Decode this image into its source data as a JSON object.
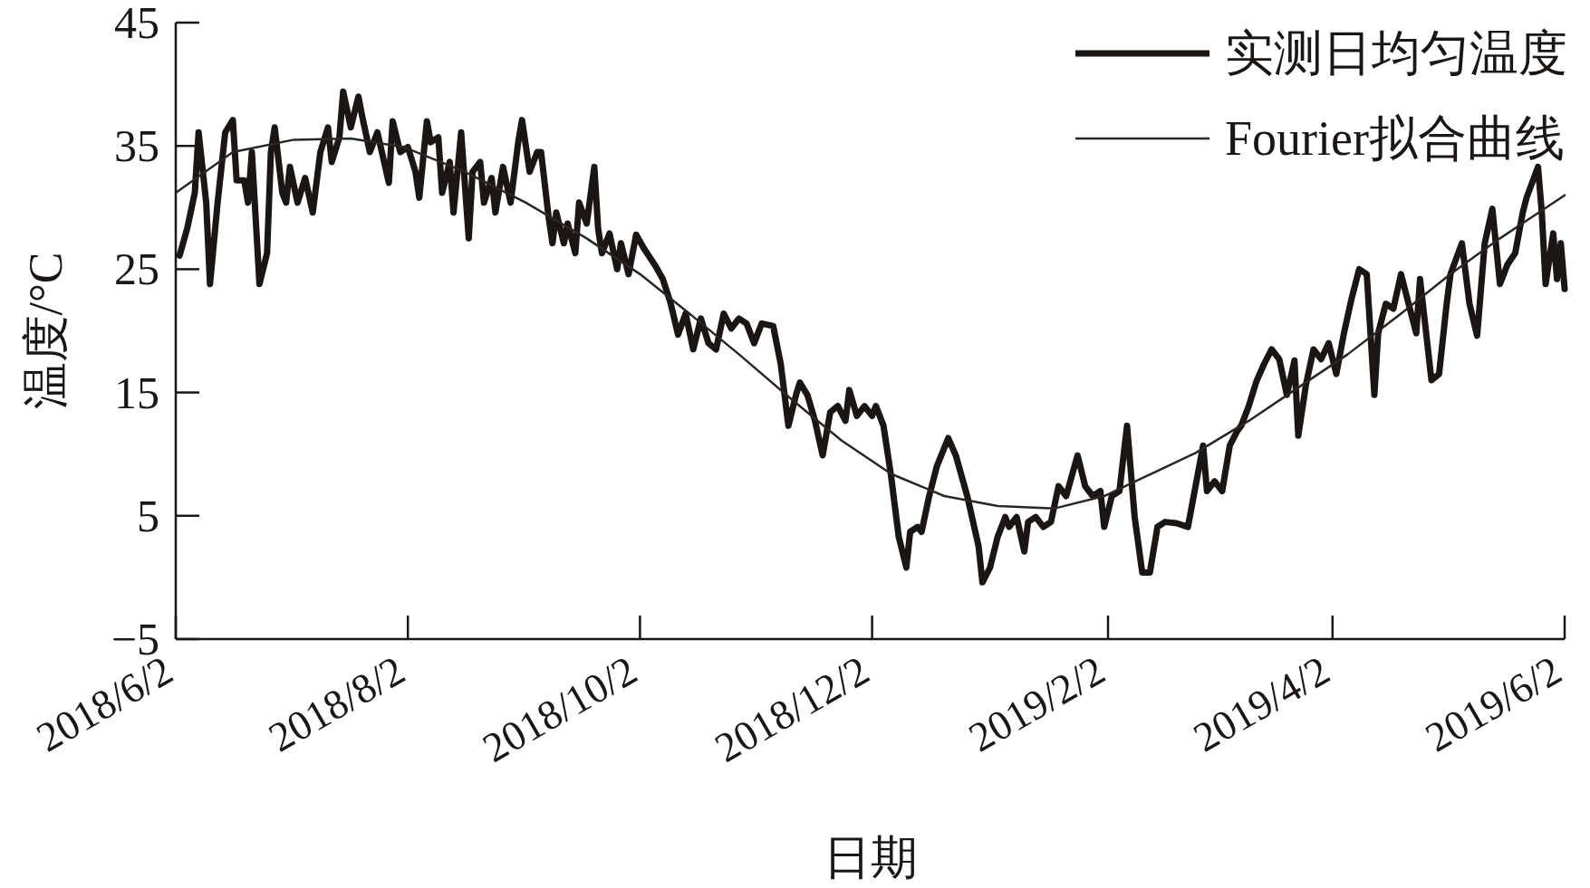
{
  "chart_data": {
    "type": "line",
    "xlabel": "日期",
    "ylabel": "温度/°C",
    "legend": "top right",
    "xlim": [
      "2018-06-02",
      "2019-06-02"
    ],
    "ylim": [
      -5,
      45
    ],
    "xticks": [
      {
        "value": "2018-06-02",
        "label": "2018/6/2"
      },
      {
        "value": "2018-08-02",
        "label": "2018/8/2"
      },
      {
        "value": "2018-10-02",
        "label": "2018/10/2"
      },
      {
        "value": "2018-12-02",
        "label": "2018/12/2"
      },
      {
        "value": "2019-02-02",
        "label": "2019/2/2"
      },
      {
        "value": "2019-04-02",
        "label": "2019/4/2"
      },
      {
        "value": "2019-06-02",
        "label": "2019/6/2"
      }
    ],
    "yticks": [
      {
        "value": -5,
        "label": "−5"
      },
      5,
      15,
      25,
      35,
      45
    ],
    "series": [
      {
        "name": "实测日均匀温度",
        "color": "#1a1614",
        "x": [
          "2018-06-03",
          "2018-06-05",
          "2018-06-07",
          "2018-06-08",
          "2018-06-10",
          "2018-06-11",
          "2018-06-13",
          "2018-06-15",
          "2018-06-17",
          "2018-06-18",
          "2018-06-20",
          "2018-06-21",
          "2018-06-22",
          "2018-06-24",
          "2018-06-26",
          "2018-06-27",
          "2018-06-28",
          "2018-06-30",
          "2018-07-01",
          "2018-07-02",
          "2018-07-04",
          "2018-07-06",
          "2018-07-08",
          "2018-07-10",
          "2018-07-12",
          "2018-07-13",
          "2018-07-15",
          "2018-07-16",
          "2018-07-18",
          "2018-07-20",
          "2018-07-21",
          "2018-07-23",
          "2018-07-25",
          "2018-07-28",
          "2018-07-29",
          "2018-07-31",
          "2018-08-02",
          "2018-08-04",
          "2018-08-05",
          "2018-08-07",
          "2018-08-08",
          "2018-08-10",
          "2018-08-11",
          "2018-08-13",
          "2018-08-14",
          "2018-08-16",
          "2018-08-18",
          "2018-08-19",
          "2018-08-21",
          "2018-08-22",
          "2018-08-24",
          "2018-08-25",
          "2018-08-27",
          "2018-08-29",
          "2018-08-31",
          "2018-09-01",
          "2018-09-03",
          "2018-09-05",
          "2018-09-06",
          "2018-09-08",
          "2018-09-09",
          "2018-09-10",
          "2018-09-12",
          "2018-09-13",
          "2018-09-15",
          "2018-09-16",
          "2018-09-18",
          "2018-09-20",
          "2018-09-21",
          "2018-09-22",
          "2018-09-24",
          "2018-09-26",
          "2018-09-27",
          "2018-09-29",
          "2018-10-01",
          "2018-10-03",
          "2018-10-06",
          "2018-10-08",
          "2018-10-10",
          "2018-10-12",
          "2018-10-14",
          "2018-10-16",
          "2018-10-18",
          "2018-10-20",
          "2018-10-22",
          "2018-10-24",
          "2018-10-26",
          "2018-10-28",
          "2018-10-30",
          "2018-11-01",
          "2018-11-03",
          "2018-11-06",
          "2018-11-08",
          "2018-11-10",
          "2018-11-12",
          "2018-11-13",
          "2018-11-15",
          "2018-11-17",
          "2018-11-19",
          "2018-11-21",
          "2018-11-23",
          "2018-11-25",
          "2018-11-26",
          "2018-11-28",
          "2018-11-30",
          "2018-12-02",
          "2018-12-03",
          "2018-12-05",
          "2018-12-07",
          "2018-12-09",
          "2018-12-11",
          "2018-12-12",
          "2018-12-14",
          "2018-12-15",
          "2018-12-17",
          "2018-12-19",
          "2018-12-22",
          "2018-12-24",
          "2018-12-27",
          "2018-12-30",
          "2018-12-31",
          "2019-01-02",
          "2019-01-04",
          "2019-01-06",
          "2019-01-07",
          "2019-01-09",
          "2019-01-11",
          "2019-01-12",
          "2019-01-14",
          "2019-01-16",
          "2019-01-18",
          "2019-01-20",
          "2019-01-22",
          "2019-01-25",
          "2019-01-27",
          "2019-01-29",
          "2019-01-31",
          "2019-02-01",
          "2019-02-03",
          "2019-02-05",
          "2019-02-07",
          "2019-02-09",
          "2019-02-11",
          "2019-02-13",
          "2019-02-15",
          "2019-02-17",
          "2019-02-20",
          "2019-02-23",
          "2019-02-25",
          "2019-02-27",
          "2019-02-28",
          "2019-03-02",
          "2019-03-04",
          "2019-03-06",
          "2019-03-08",
          "2019-03-09",
          "2019-03-11",
          "2019-03-13",
          "2019-03-15",
          "2019-03-17",
          "2019-03-19",
          "2019-03-21",
          "2019-03-23",
          "2019-03-24",
          "2019-03-26",
          "2019-03-28",
          "2019-03-30",
          "2019-04-01",
          "2019-04-03",
          "2019-04-05",
          "2019-04-07",
          "2019-04-09",
          "2019-04-11",
          "2019-04-13",
          "2019-04-14",
          "2019-04-16",
          "2019-04-18",
          "2019-04-20",
          "2019-04-22",
          "2019-04-24",
          "2019-04-25",
          "2019-04-28",
          "2019-04-30",
          "2019-05-02",
          "2019-05-03",
          "2019-05-06",
          "2019-05-08",
          "2019-05-10",
          "2019-05-12",
          "2019-05-14",
          "2019-05-16",
          "2019-05-18",
          "2019-05-20",
          "2019-05-22",
          "2019-05-23",
          "2019-05-26",
          "2019-05-27",
          "2019-05-28",
          "2019-05-30",
          "2019-05-31",
          "2019-06-01",
          "2019-06-02"
        ],
        "values": [
          26.1,
          28.3,
          31.2,
          36.1,
          30.4,
          23.8,
          30.4,
          36.1,
          37.1,
          32.2,
          32.2,
          30.4,
          34.5,
          23.8,
          26.3,
          34.5,
          36.5,
          31.2,
          30.4,
          33.3,
          30.4,
          32.4,
          29.6,
          34.5,
          36.5,
          33.7,
          35.7,
          39.4,
          36.5,
          39.0,
          37.4,
          34.5,
          36.1,
          32.0,
          37.0,
          34.5,
          34.9,
          32.9,
          30.8,
          37.0,
          35.3,
          35.7,
          31.2,
          33.7,
          29.6,
          36.1,
          27.5,
          32.9,
          33.7,
          30.4,
          32.4,
          29.6,
          33.3,
          30.4,
          35.3,
          37.1,
          32.9,
          34.5,
          34.5,
          29.2,
          27.1,
          29.6,
          27.1,
          28.7,
          26.3,
          30.4,
          28.7,
          33.3,
          28.3,
          26.3,
          27.9,
          25.0,
          27.1,
          24.6,
          27.8,
          26.7,
          25.3,
          24.2,
          22.3,
          19.7,
          21.4,
          18.5,
          21.0,
          19.0,
          18.5,
          21.4,
          20.2,
          21.0,
          20.6,
          19.0,
          20.6,
          20.4,
          17.3,
          12.3,
          14.8,
          15.8,
          14.8,
          12.7,
          9.9,
          13.4,
          13.9,
          12.7,
          15.2,
          13.1,
          13.9,
          13.1,
          13.9,
          12.3,
          8.2,
          3.3,
          0.8,
          3.7,
          4.1,
          3.7,
          6.6,
          9.0,
          11.3,
          9.9,
          6.6,
          2.5,
          -0.4,
          0.8,
          3.3,
          4.9,
          4.1,
          4.9,
          2.1,
          4.5,
          4.9,
          4.1,
          4.5,
          7.4,
          6.6,
          9.9,
          7.4,
          6.6,
          7.0,
          4.1,
          6.6,
          7.0,
          12.3,
          4.9,
          0.4,
          0.4,
          4.1,
          4.5,
          4.4,
          4.1,
          7.4,
          10.7,
          7.0,
          7.8,
          7.0,
          10.7,
          11.9,
          12.3,
          13.9,
          15.9,
          17.3,
          18.5,
          17.7,
          14.8,
          17.6,
          11.5,
          15.6,
          18.5,
          17.7,
          19.0,
          16.5,
          19.8,
          22.6,
          25.0,
          24.6,
          14.8,
          19.8,
          22.2,
          21.8,
          24.6,
          22.2,
          19.8,
          24.2,
          16.0,
          16.5,
          22.2,
          24.6,
          27.1,
          22.2,
          19.6,
          27.1,
          29.9,
          23.8,
          25.4,
          26.3,
          29.6,
          30.8,
          33.3,
          29.6,
          23.8,
          27.9,
          24.2,
          27.1,
          23.4
        ]
      },
      {
        "name": "Fourier拟合曲线",
        "color": "#2b2624",
        "x": [
          "2018-06-02",
          "2018-06-17",
          "2018-07-03",
          "2018-07-18",
          "2018-08-01",
          "2018-08-17",
          "2018-09-02",
          "2018-09-18",
          "2018-10-02",
          "2018-10-15",
          "2018-10-28",
          "2018-11-11",
          "2018-11-24",
          "2018-12-07",
          "2018-12-21",
          "2019-01-04",
          "2019-01-19",
          "2019-02-01",
          "2019-02-12",
          "2019-02-25",
          "2019-03-11",
          "2019-03-24",
          "2019-04-06",
          "2019-04-20",
          "2019-05-03",
          "2019-05-16",
          "2019-06-02"
        ],
        "values": [
          31.2,
          34.5,
          35.5,
          35.6,
          34.9,
          32.9,
          30.4,
          27.5,
          24.6,
          21.4,
          18.1,
          14.4,
          11.1,
          8.4,
          6.6,
          5.8,
          5.6,
          6.6,
          8.2,
          10.1,
          12.7,
          15.4,
          18.1,
          21.4,
          24.6,
          27.5,
          31.0
        ]
      }
    ]
  }
}
